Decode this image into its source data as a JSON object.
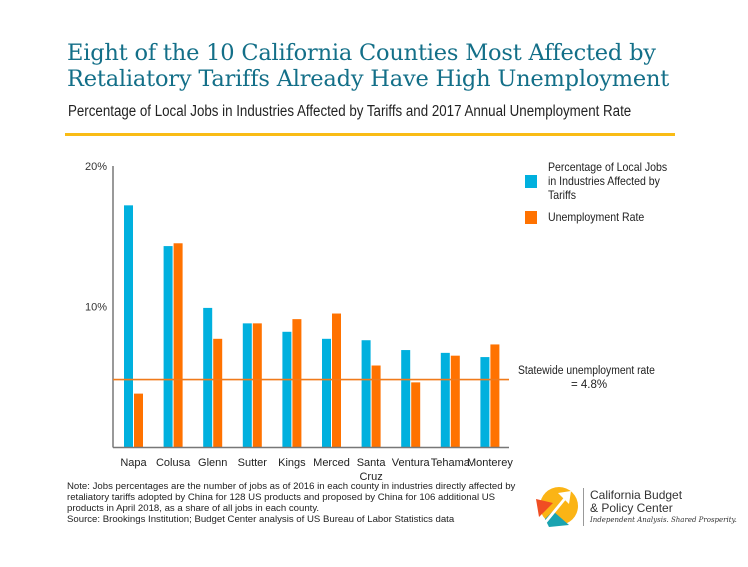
{
  "header": {
    "title_line1": "Eight of the 10 California Counties Most Affected by",
    "title_line2": "Retaliatory Tariffs Already Have High Unemployment",
    "subtitle": "Percentage of Local Jobs in Industries Affected by Tariffs and 2017 Annual Unemployment Rate"
  },
  "colors": {
    "title": "#136f88",
    "rule": "#f9bc15",
    "jobs_series": "#00b0de",
    "unemployment_series": "#ff7200",
    "statewide_line": "#f07a1a"
  },
  "legend": {
    "items": [
      {
        "label": "Percentage of Local Jobs in Industries Affected by Tariffs",
        "color": "#00b0de"
      },
      {
        "label": "Unemployment Rate",
        "color": "#ff7200"
      }
    ]
  },
  "annotation": {
    "line1": "Statewide unemployment rate",
    "line2": "= 4.8%"
  },
  "note": {
    "text": "Note: Jobs percentages are the number of jobs as of 2016 in each county in industries directly affected by retaliatory tariffs adopted by China for 128 US products and proposed by China for 106 additional US products in April 2018, as a share of all jobs in each county.",
    "source": "Source: Brookings Institution; Budget Center analysis of US Bureau of Labor Statistics data"
  },
  "logo": {
    "name_line1": "California Budget",
    "name_line2": "& Policy Center",
    "tagline": "Independent Analysis. Shared Prosperity."
  },
  "chart_data": {
    "type": "bar",
    "title": "Eight of the 10 California Counties Most Affected by Retaliatory Tariffs Already Have High Unemployment",
    "subtitle": "Percentage of Local Jobs in Industries Affected by Tariffs and 2017 Annual Unemployment Rate",
    "xlabel": "",
    "ylabel": "",
    "ylim": [
      0,
      20
    ],
    "yticks": [
      10,
      20
    ],
    "ytick_labels": [
      "10%",
      "20%"
    ],
    "grid": false,
    "legend_position": "right",
    "categories": [
      [
        "Napa"
      ],
      [
        "Colusa"
      ],
      [
        "Glenn"
      ],
      [
        "Sutter"
      ],
      [
        "Kings"
      ],
      [
        "Merced"
      ],
      [
        "Santa",
        "Cruz"
      ],
      [
        "Ventura"
      ],
      [
        "Tehama"
      ],
      [
        "Monterey"
      ]
    ],
    "series": [
      {
        "name": "Percentage of Local Jobs in Industries Affected by Tariffs",
        "color": "#00b0de",
        "values": [
          17.2,
          14.3,
          9.9,
          8.8,
          8.2,
          7.7,
          7.6,
          6.9,
          6.7,
          6.4
        ]
      },
      {
        "name": "Unemployment Rate",
        "color": "#ff7200",
        "values": [
          3.8,
          14.5,
          7.7,
          8.8,
          9.1,
          9.5,
          5.8,
          4.6,
          6.5,
          7.3
        ]
      }
    ],
    "reference_line": {
      "label": "Statewide unemployment rate = 4.8%",
      "value": 4.8
    }
  }
}
